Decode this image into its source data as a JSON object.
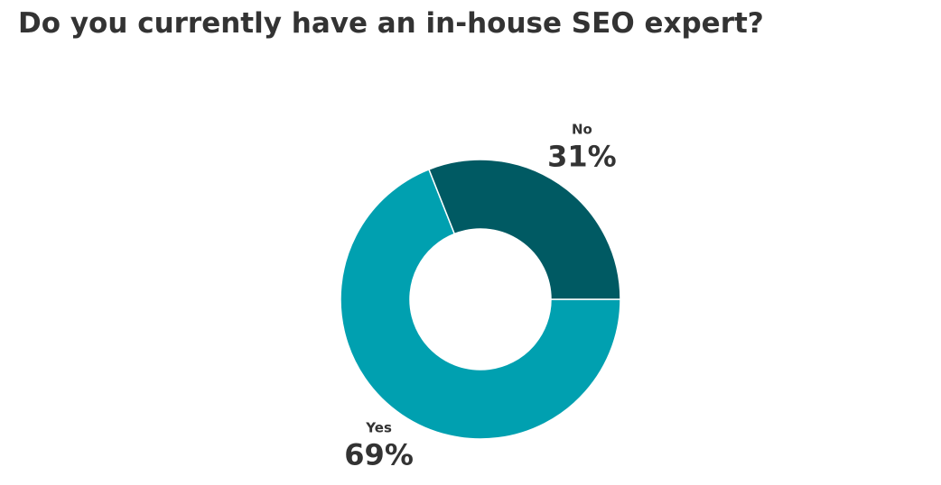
{
  "chart_data": {
    "type": "donut",
    "title": "Do you currently have an in-house SEO expert?",
    "categories": [
      "Yes",
      "No"
    ],
    "values": [
      69,
      31
    ],
    "value_labels": [
      "69%",
      "31%"
    ],
    "colors": [
      "#00a0b0",
      "#005a63"
    ]
  }
}
